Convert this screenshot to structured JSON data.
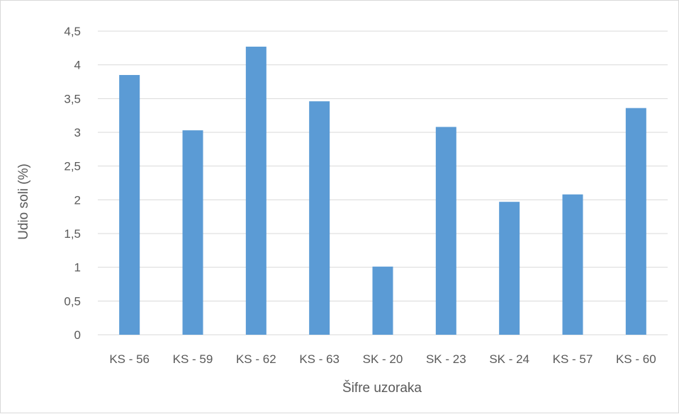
{
  "chart_data": {
    "type": "bar",
    "title": "",
    "xlabel": "Šifre uzoraka",
    "ylabel": "Udio soli (%)",
    "categories": [
      "KS - 56",
      "KS - 59",
      "KS - 62",
      "KS - 63",
      "SK - 20",
      "SK - 23",
      "SK - 24",
      "KS - 57",
      "KS - 60"
    ],
    "values": [
      3.85,
      3.03,
      4.27,
      3.46,
      1.01,
      3.08,
      1.97,
      2.08,
      3.36
    ],
    "ylim": [
      0,
      4.5
    ],
    "yticks": [
      "0",
      "0,5",
      "1",
      "1,5",
      "2",
      "2,5",
      "3",
      "3,5",
      "4",
      "4,5"
    ],
    "grid": true,
    "legend": "none",
    "colors": {
      "bar": "#5b9bd5",
      "gridline": "#d9d9d9",
      "axis_text": "#595959"
    }
  }
}
